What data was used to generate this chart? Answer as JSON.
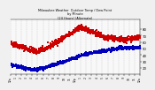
{
  "title_line1": "Milwaukee Weather  Outdoor Temp / Dew Point",
  "title_line2": "by Minute",
  "title_line3": "(24 Hours) (Alternate)",
  "bg_color": "#f0f0f0",
  "plot_bg_color": "#f8f8f8",
  "grid_color": "#aaaaaa",
  "red_color": "#cc0000",
  "blue_color": "#0000bb",
  "ylim": [
    10,
    95
  ],
  "xlim": [
    0,
    1440
  ],
  "ytick_labels": [
    "80",
    "70",
    "60",
    "50",
    "40",
    "30",
    "20"
  ],
  "ytick_vals": [
    80,
    70,
    60,
    50,
    40,
    30,
    20
  ],
  "xtick_positions": [
    0,
    60,
    120,
    180,
    240,
    300,
    360,
    420,
    480,
    540,
    600,
    660,
    720,
    780,
    840,
    900,
    960,
    1020,
    1080,
    1140,
    1200,
    1260,
    1320,
    1380,
    1440
  ],
  "xtick_labels": [
    "12a",
    "1",
    "2",
    "3",
    "4",
    "5",
    "6",
    "7",
    "8",
    "9",
    "10",
    "11",
    "12p",
    "1",
    "2",
    "3",
    "4",
    "5",
    "6",
    "7",
    "8",
    "9",
    "10",
    "11",
    "12a"
  ],
  "vgrid_positions": [
    0,
    60,
    120,
    180,
    240,
    300,
    360,
    420,
    480,
    540,
    600,
    660,
    720,
    780,
    840,
    900,
    960,
    1020,
    1080,
    1140,
    1200,
    1260,
    1320,
    1380,
    1440
  ],
  "temp_seed": 42,
  "dew_seed": 99,
  "dot_size": 1.2
}
